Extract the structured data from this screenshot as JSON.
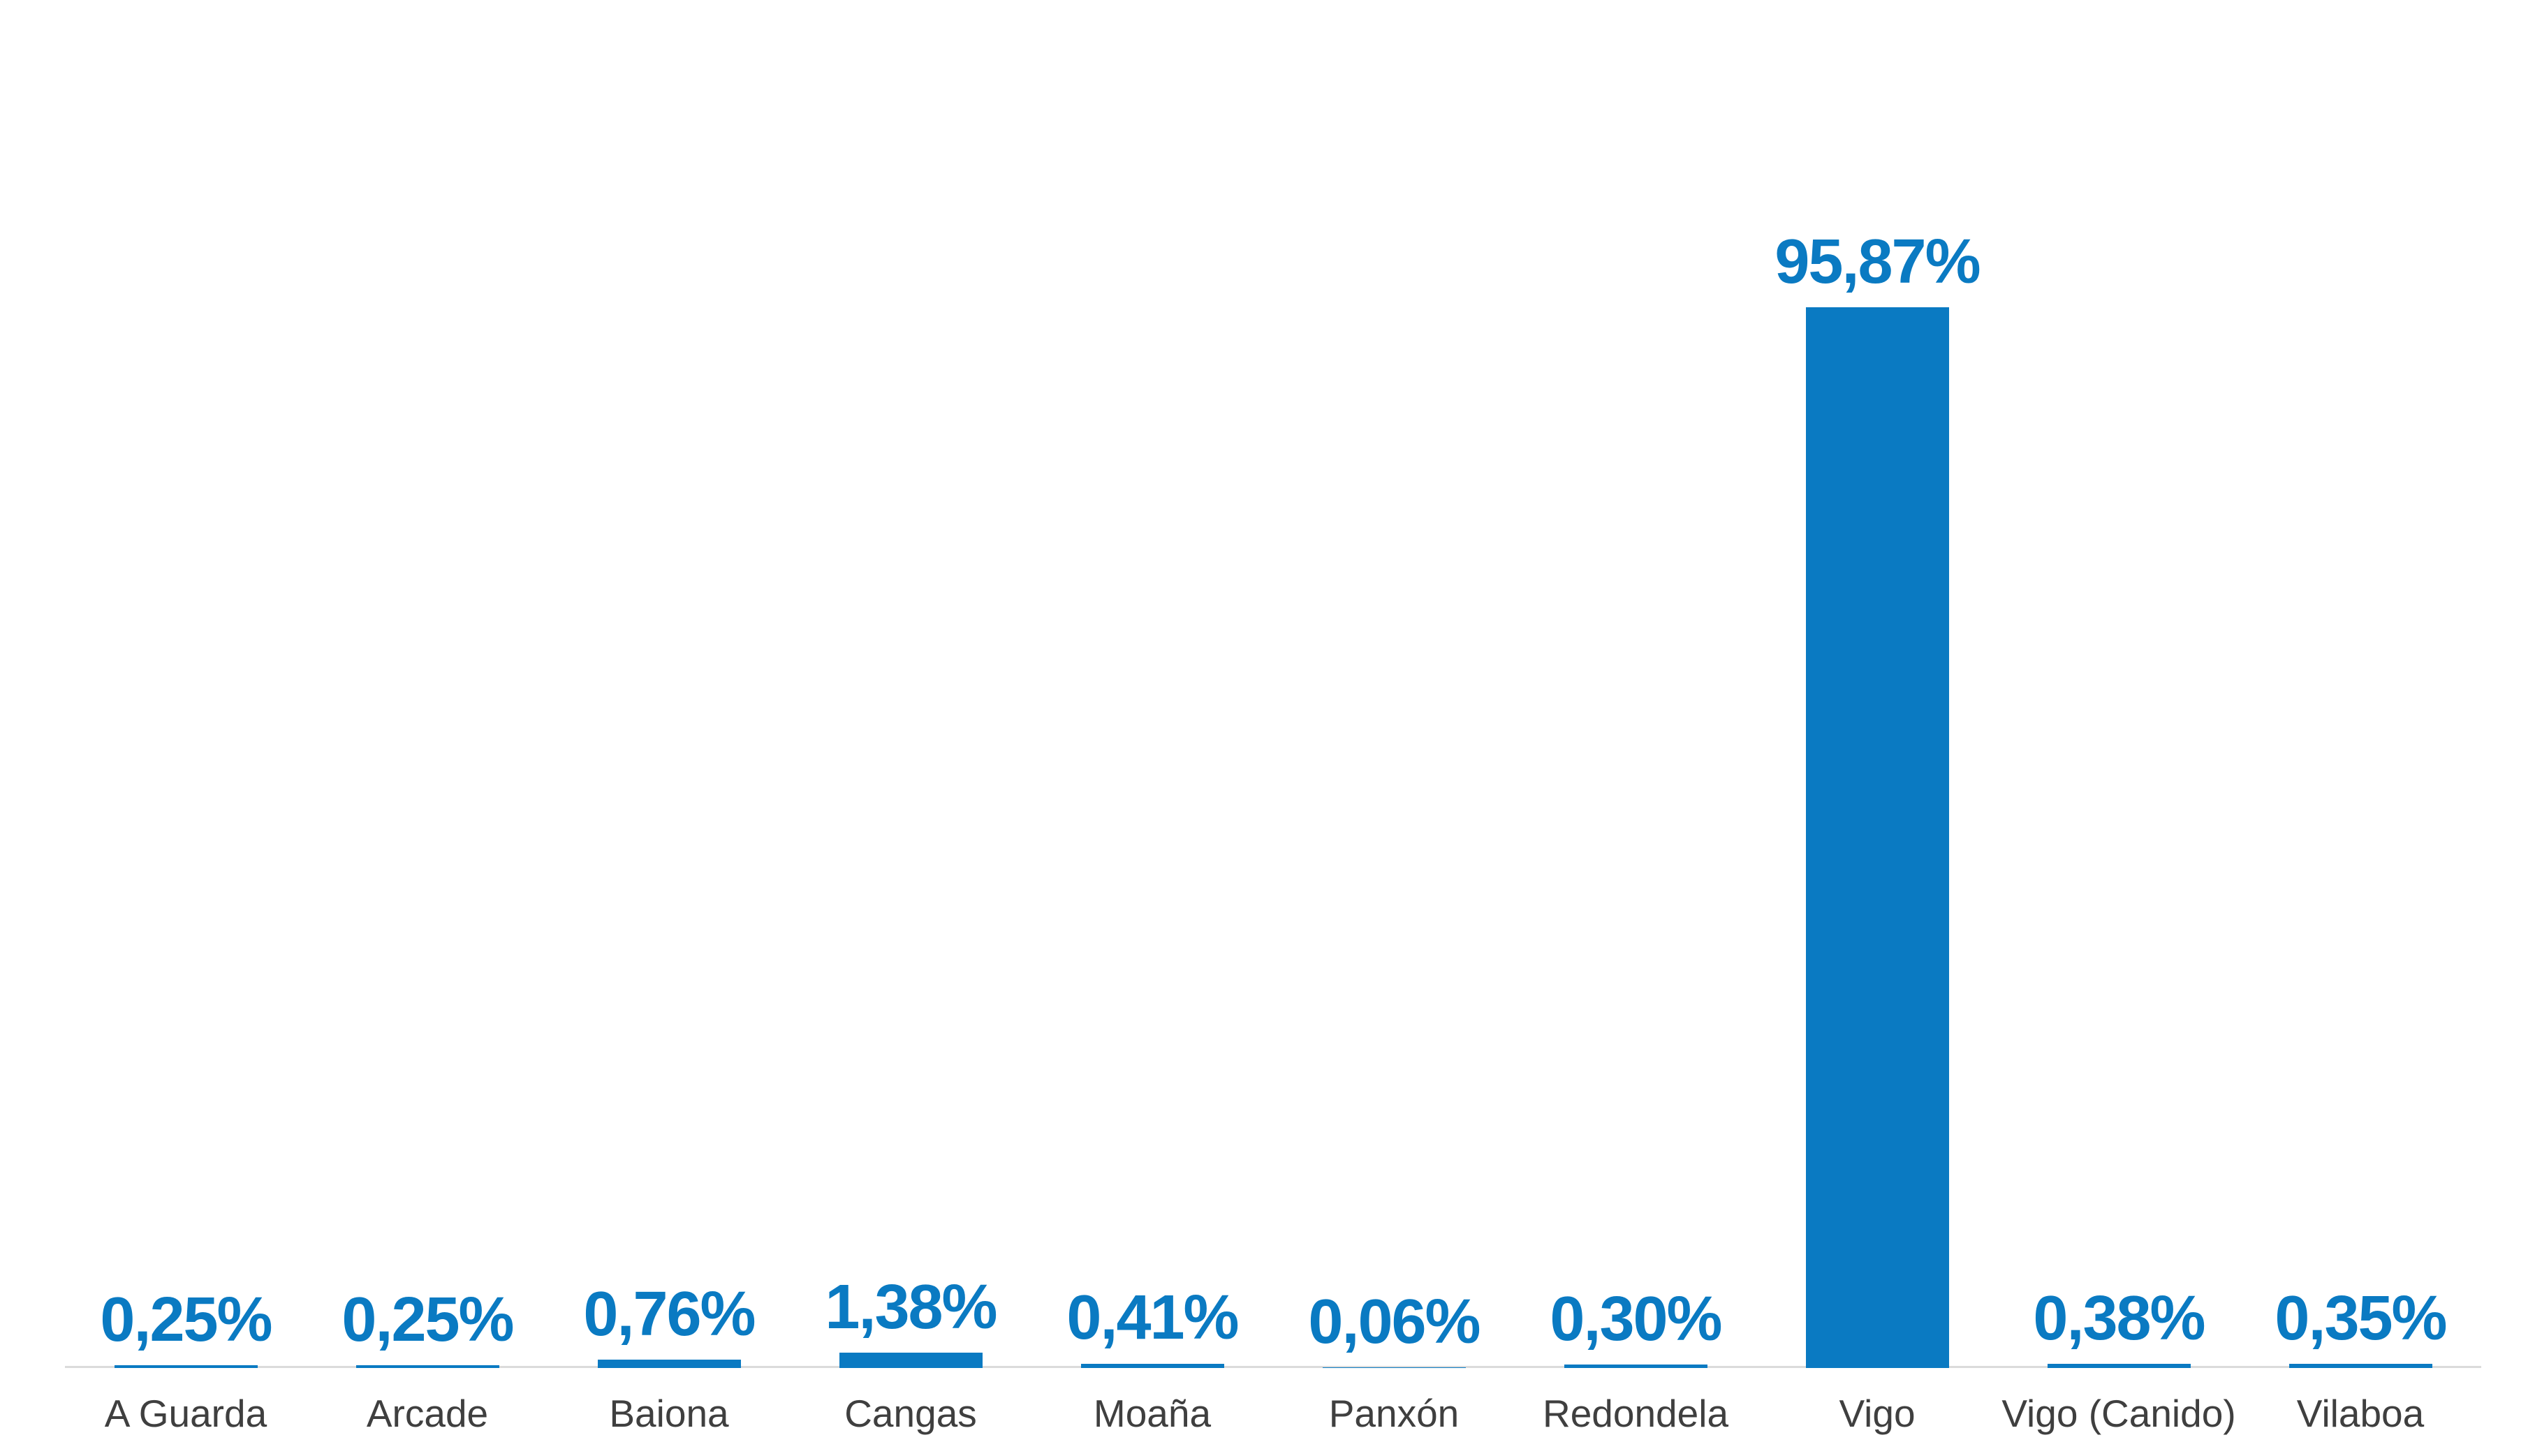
{
  "chart_data": {
    "type": "bar",
    "title": "",
    "xlabel": "",
    "ylabel": "",
    "categories": [
      "A Guarda",
      "Arcade",
      "Baiona",
      "Cangas",
      "Moaña",
      "Panxón",
      "Redondela",
      "Vigo",
      "Vigo (Canido)",
      "Vilaboa"
    ],
    "values": [
      0.25,
      0.25,
      0.76,
      1.38,
      0.41,
      0.06,
      0.3,
      95.87,
      0.38,
      0.35
    ],
    "value_labels": [
      "0,25%",
      "0,25%",
      "0,76%",
      "1,38%",
      "0,41%",
      "0,06%",
      "0,30%",
      "95,87%",
      "0,38%",
      "0,35%"
    ],
    "ylim": [
      0,
      100
    ],
    "grid": false,
    "legend": false,
    "decimal_separator": ",",
    "colors": {
      "bar": "#0A7AC2",
      "value_label": "#0A7AC2",
      "category_label": "#3F3F3F",
      "axis_line": "#DBDBDB",
      "background": "#FFFFFF"
    }
  }
}
